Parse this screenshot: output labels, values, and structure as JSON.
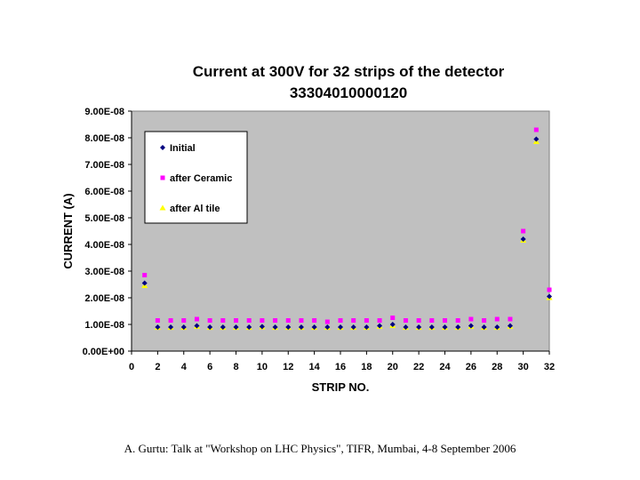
{
  "chart_data": {
    "type": "scatter",
    "title_line1": "Current at 300V for 32 strips of  the detector",
    "title_line2": "33304010000120",
    "xlabel": "STRIP NO.",
    "ylabel": "CURRENT (A)",
    "xlim": [
      0,
      32
    ],
    "ylim": [
      0,
      9e-08
    ],
    "x_ticks": [
      "0",
      "2",
      "4",
      "6",
      "8",
      "10",
      "12",
      "14",
      "16",
      "18",
      "20",
      "22",
      "24",
      "26",
      "28",
      "30",
      "32"
    ],
    "y_ticks": [
      "0.00E+00",
      "1.00E-08",
      "2.00E-08",
      "3.00E-08",
      "4.00E-08",
      "5.00E-08",
      "6.00E-08",
      "7.00E-08",
      "8.00E-08",
      "9.00E-08"
    ],
    "grid": false,
    "legend_position": "top-left",
    "x": [
      1,
      2,
      3,
      4,
      5,
      6,
      7,
      8,
      9,
      10,
      11,
      12,
      13,
      14,
      15,
      16,
      17,
      18,
      19,
      20,
      21,
      22,
      23,
      24,
      25,
      26,
      27,
      28,
      29,
      30,
      31,
      32
    ],
    "series": [
      {
        "name": "Initial",
        "marker": "diamond",
        "color": "#000080",
        "values": [
          2.55e-08,
          9e-09,
          9e-09,
          9e-09,
          9.5e-09,
          9e-09,
          9e-09,
          9e-09,
          9e-09,
          9.2e-09,
          9e-09,
          9e-09,
          9e-09,
          9e-09,
          9e-09,
          9e-09,
          9e-09,
          9e-09,
          9.5e-09,
          1e-08,
          9e-09,
          9e-09,
          9e-09,
          9e-09,
          9e-09,
          9.5e-09,
          9e-09,
          9e-09,
          9.5e-09,
          4.2e-08,
          7.95e-08,
          2.05e-08
        ]
      },
      {
        "name": "after Ceramic",
        "marker": "square",
        "color": "#ff00ff",
        "values": [
          2.85e-08,
          1.15e-08,
          1.15e-08,
          1.15e-08,
          1.2e-08,
          1.15e-08,
          1.15e-08,
          1.15e-08,
          1.15e-08,
          1.15e-08,
          1.15e-08,
          1.15e-08,
          1.15e-08,
          1.15e-08,
          1.1e-08,
          1.15e-08,
          1.15e-08,
          1.15e-08,
          1.15e-08,
          1.25e-08,
          1.15e-08,
          1.15e-08,
          1.15e-08,
          1.15e-08,
          1.15e-08,
          1.2e-08,
          1.15e-08,
          1.2e-08,
          1.2e-08,
          4.5e-08,
          8.3e-08,
          2.3e-08
        ]
      },
      {
        "name": "after Al tile",
        "marker": "triangle",
        "color": "#ffff00",
        "values": [
          2.45e-08,
          8.8e-09,
          8.8e-09,
          8.8e-09,
          9.2e-09,
          8.8e-09,
          8.8e-09,
          8.8e-09,
          8.8e-09,
          9e-09,
          8.8e-09,
          8.8e-09,
          8.8e-09,
          8.8e-09,
          8.8e-09,
          8.8e-09,
          8.8e-09,
          8.8e-09,
          9.2e-09,
          9.5e-09,
          8.8e-09,
          8.8e-09,
          8.8e-09,
          8.8e-09,
          8.8e-09,
          9.2e-09,
          8.8e-09,
          8.8e-09,
          9.2e-09,
          4.15e-08,
          7.85e-08,
          2e-08
        ]
      }
    ],
    "plot_background": "#c0c0c0"
  },
  "caption": "A. Gurtu: Talk at \"Workshop on LHC Physics\", TIFR, Mumbai, 4-8 September 2006"
}
